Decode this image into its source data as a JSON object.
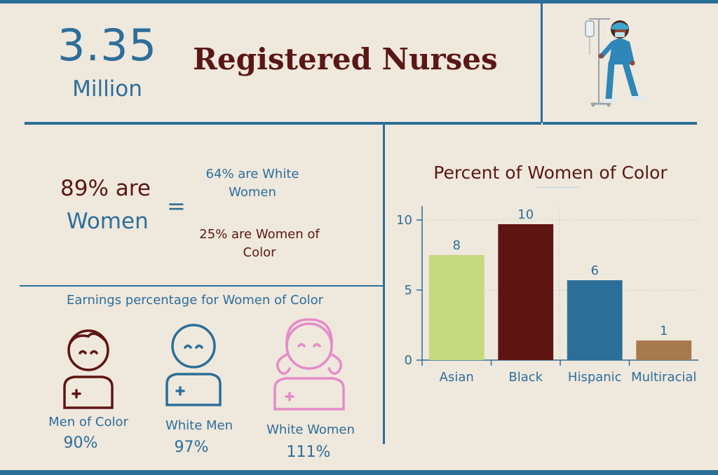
{
  "header": {
    "big_number": "3.35",
    "big_unit": "Million",
    "title": "Registered Nurses"
  },
  "women": {
    "line1": "89% are",
    "line2": "Women",
    "equals": "=",
    "white_women": "64% are White Women",
    "women_of_color": "25% are Women of Color"
  },
  "earnings": {
    "title": "Earnings percentage for Women of Color",
    "figures": [
      {
        "label": "Men of Color",
        "value": "90%",
        "color": "#5e1512"
      },
      {
        "label": "White Men",
        "value": "97%",
        "color": "#2b6f98"
      },
      {
        "label": "White Women",
        "value": "111%",
        "color": "#e58bc9"
      }
    ]
  },
  "illustration": {
    "icon": "nurse-with-iv-pole-icon"
  },
  "chart_data": {
    "type": "bar",
    "title": "Percent of Women of Color",
    "categories": [
      "Asian",
      "Black",
      "Hispanic",
      "Multiracial"
    ],
    "values": [
      7.5,
      9.7,
      5.7,
      1.4
    ],
    "data_labels": [
      "8",
      "10",
      "6",
      "1"
    ],
    "colors": [
      "#c5d97e",
      "#5e1512",
      "#2b6f98",
      "#a8784e"
    ],
    "ylim": [
      0,
      11
    ],
    "yticks": [
      0,
      5,
      10
    ],
    "grid": true,
    "xlabel": "",
    "ylabel": ""
  }
}
